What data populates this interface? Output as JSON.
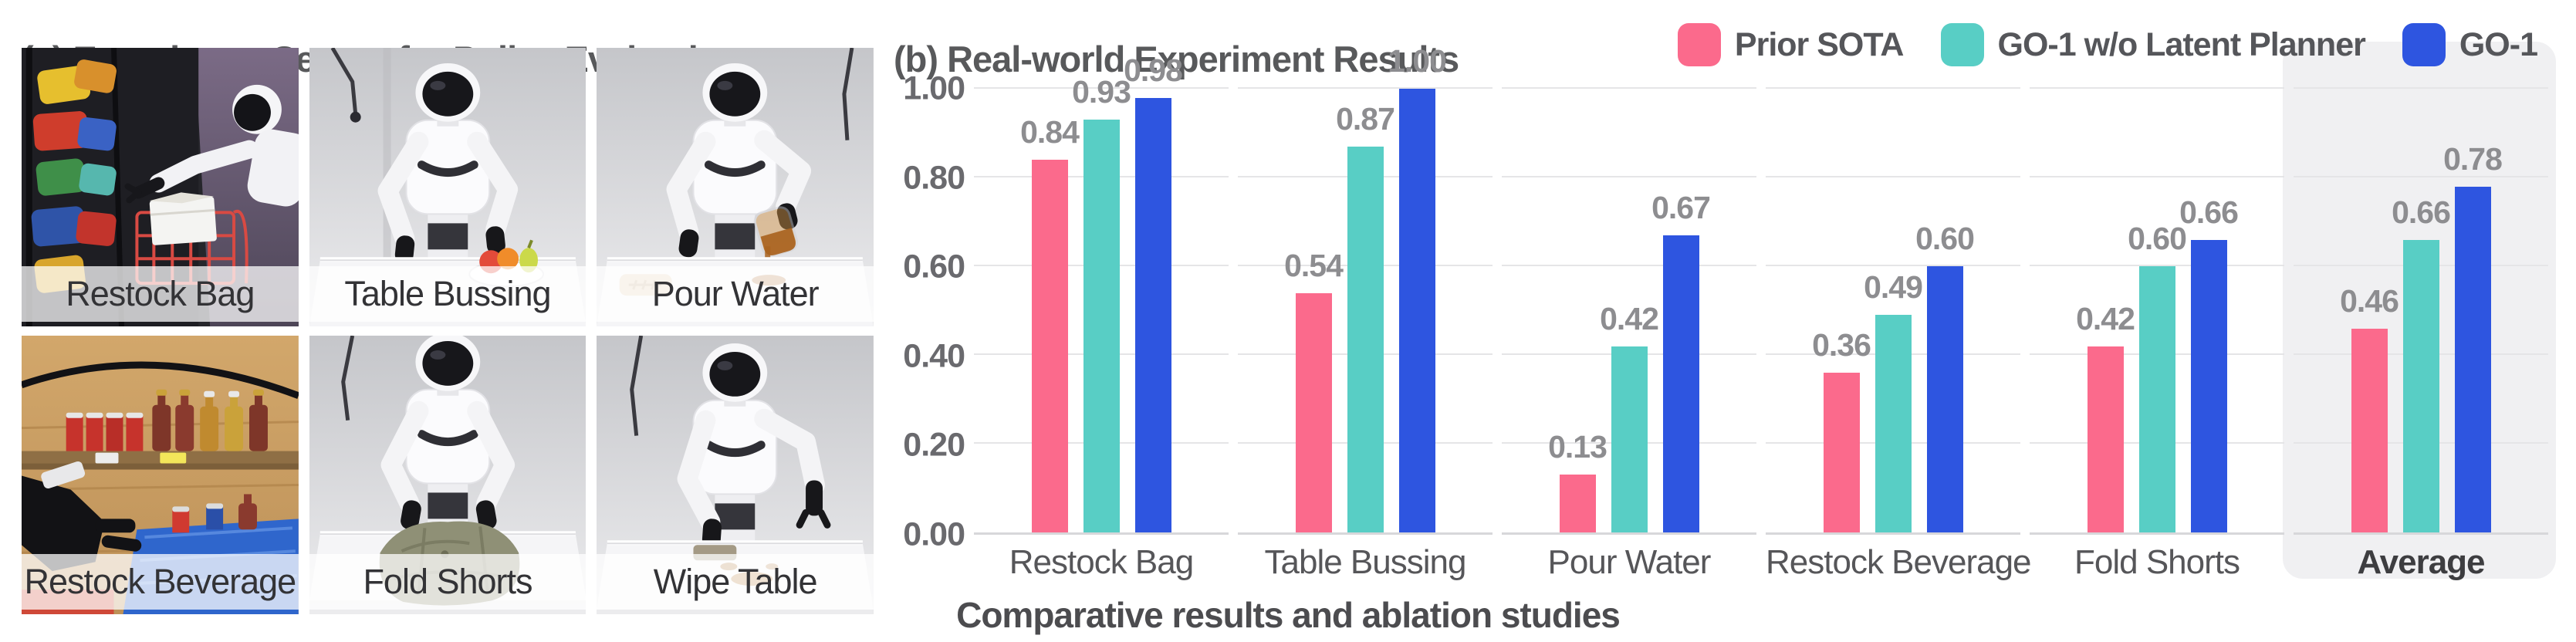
{
  "panel_a": {
    "title": "(a) Experiment Setups for Policy Evaluation",
    "photos": [
      {
        "label": "Restock Bag"
      },
      {
        "label": "Table Bussing"
      },
      {
        "label": "Pour Water"
      },
      {
        "label": "Restock Beverage"
      },
      {
        "label": "Fold Shorts"
      },
      {
        "label": "Wipe Table"
      }
    ]
  },
  "panel_b": {
    "title": "(b) Real-world Experiment Results",
    "caption": "Comparative results and ablation studies",
    "legend": [
      {
        "label": "Prior SOTA",
        "color": "#FB6A8C"
      },
      {
        "label": "GO-1 w/o Latent Planner",
        "color": "#58CEC5"
      },
      {
        "label": "GO-1",
        "color": "#2E55E0"
      }
    ]
  },
  "chart_data": {
    "type": "bar",
    "title": "(b) Real-world Experiment Results",
    "categories": [
      "Restock Bag",
      "Table Bussing",
      "Pour Water",
      "Restock Beverage",
      "Fold Shorts",
      "Average"
    ],
    "series": [
      {
        "name": "Prior SOTA",
        "color": "#FB6A8C",
        "values": [
          0.84,
          0.54,
          0.13,
          0.36,
          0.42,
          0.46
        ]
      },
      {
        "name": "GO-1 w/o Latent Planner",
        "color": "#58CEC5",
        "values": [
          0.93,
          0.87,
          0.42,
          0.49,
          0.6,
          0.66
        ]
      },
      {
        "name": "GO-1",
        "color": "#2E55E0",
        "values": [
          0.98,
          1.0,
          0.67,
          0.6,
          0.66,
          0.78
        ]
      }
    ],
    "yticks": [
      0.0,
      0.2,
      0.4,
      0.6,
      0.8,
      1.0
    ],
    "ytick_labels": [
      "0.00",
      "0.20",
      "0.40",
      "0.60",
      "0.80",
      "1.00"
    ],
    "ylim": [
      0,
      1.0
    ],
    "grid": true,
    "legend_position": "top-right",
    "highlight_category": "Average",
    "highlight_color": "#f0f0f2",
    "value_label_format": "0.00"
  }
}
